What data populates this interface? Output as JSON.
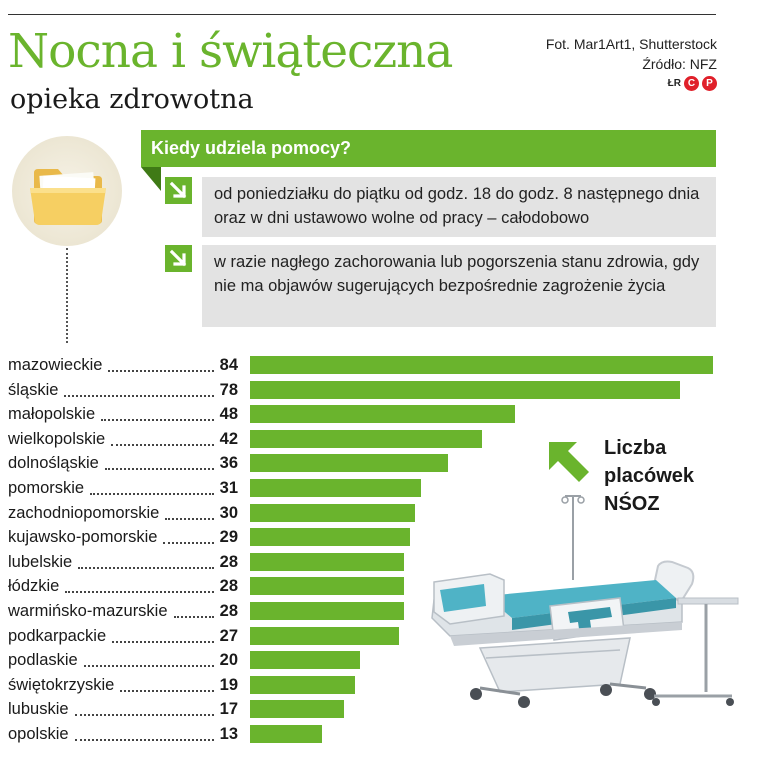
{
  "header": {
    "title": "Nocna i świąteczna",
    "subtitle": "opieka zdrowotna",
    "photo_credit": "Fot. Mar1Art1, Shutterstock",
    "source": "Źródło: NFZ",
    "logo_initials": "ŁR",
    "logo_badges": [
      "C",
      "P"
    ]
  },
  "info": {
    "heading": "Kiedy udziela pomocy?",
    "items": [
      "od poniedziałku do piątku od godz. 18 do godz. 8 następnego dnia oraz w dni ustawowo wolne od pracy – całodobowo",
      "w razie nagłego zachorowania lub pogorszenia stanu zdrowia, gdy nie ma objawów sugerujących bezpośrednie zagrożenie życia"
    ]
  },
  "legend": {
    "lines": [
      "Liczba",
      "placówek",
      "NŚOZ"
    ]
  },
  "colors": {
    "accent_green": "#6ab42d",
    "dark_green": "#3f7a16",
    "info_gray": "#e3e3e3",
    "logo_red": "#e0202a"
  },
  "icons": [
    "folder-icon",
    "arrow-down-right-icon",
    "arrow-up-left-icon",
    "hospital-bed-illustration"
  ],
  "chart_data": {
    "type": "bar",
    "orientation": "horizontal",
    "title": "",
    "categories": [
      "mazowieckie",
      "śląskie",
      "małopolskie",
      "wielkopolskie",
      "dolnośląskie",
      "pomorskie",
      "zachodniopomorskie",
      "kujawsko-pomorskie",
      "lubelskie",
      "łódzkie",
      "warmińsko-mazurskie",
      "podkarpackie",
      "podlaskie",
      "świętokrzyskie",
      "lubuskie",
      "opolskie"
    ],
    "values": [
      84,
      78,
      48,
      42,
      36,
      31,
      30,
      29,
      28,
      28,
      28,
      27,
      20,
      19,
      17,
      13
    ],
    "xlim": [
      0,
      84
    ],
    "grid": false,
    "legend_position": "right"
  }
}
